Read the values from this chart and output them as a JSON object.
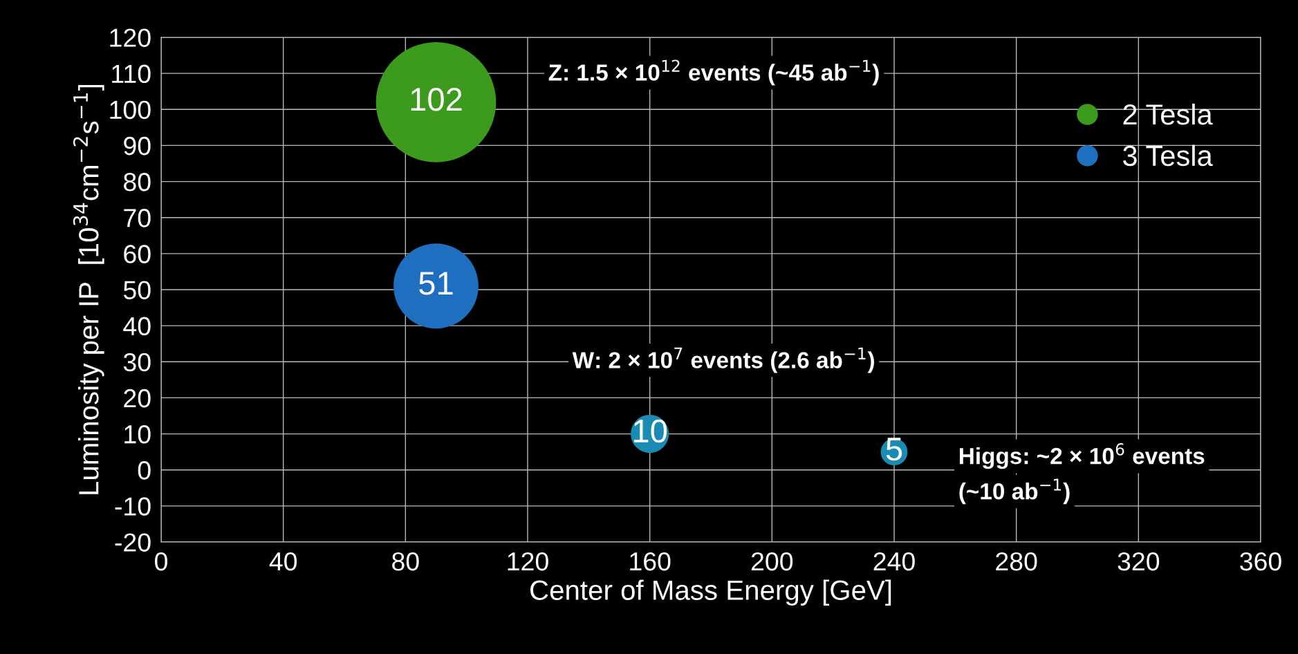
{
  "chart_data": {
    "type": "bubble",
    "xlabel": "Center of Mass Energy [GeV]",
    "ylabel": "Luminosity per IP  [10$^{34}$cm$^{−2}$s$^{−1}$]",
    "series": [
      {
        "name": "2 Tesla",
        "color": "#3c9a1c",
        "x": [
          90
        ],
        "values": [
          102
        ],
        "sizes": [
          1
        ]
      },
      {
        "name": "3 Tesla",
        "color": "#1f6fc0",
        "colors": [
          "#1f6fc0",
          "#1a8cb4",
          "#1a8cb4"
        ],
        "x": [
          90,
          160,
          240
        ],
        "values": [
          51,
          10,
          5
        ],
        "sizes": [
          0.5,
          0.1,
          0.05
        ]
      }
    ],
    "data_labels": true,
    "annotations": [
      "Z: 1.5 × 10$^{12}$ events (~45 ab$^{−1}$)",
      "W: 2 × 10$^{7}$ events (2.6 ab$^{−1}$)",
      "Higgs: ~2 × 10$^{6}$ events",
      "(~10 ab$^{−1}$)"
    ],
    "xlim": [
      0,
      360
    ],
    "xticks": [
      0,
      40,
      80,
      120,
      160,
      200,
      240,
      280,
      320,
      360
    ],
    "ylim": [
      -20,
      120
    ],
    "yticks": [
      -20,
      -10,
      0,
      10,
      20,
      30,
      40,
      50,
      60,
      70,
      80,
      90,
      100,
      110,
      120
    ],
    "grid": true,
    "legend": "top right"
  }
}
